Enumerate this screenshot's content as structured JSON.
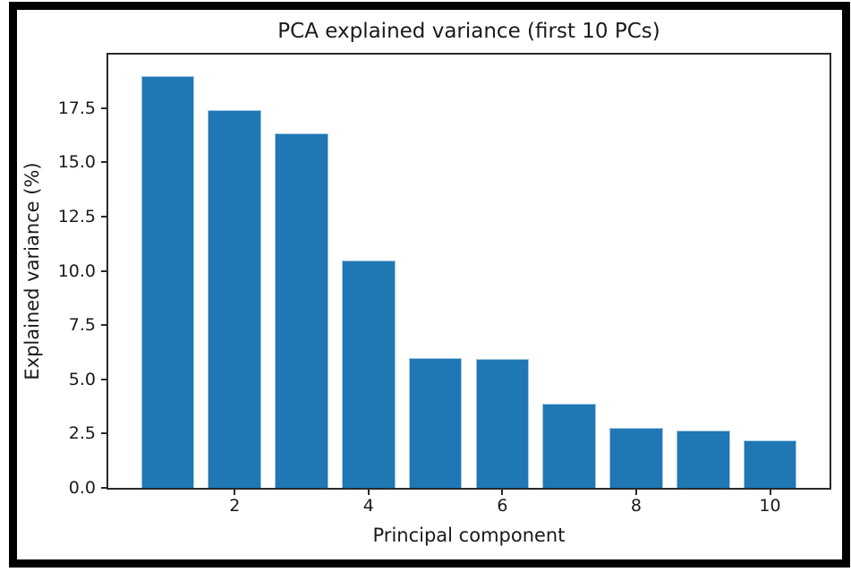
{
  "figure": {
    "frame_color": "#000000",
    "background_color": "#ffffff",
    "spine_color": "#2a2a2a",
    "text_color": "#1a1a1a"
  },
  "chart_data": {
    "type": "bar",
    "title": "PCA explained variance (first 10 PCs)",
    "xlabel": "Principal component",
    "ylabel": "Explained variance (%)",
    "categories": [
      1,
      2,
      3,
      4,
      5,
      6,
      7,
      8,
      9,
      10
    ],
    "values": [
      18.97,
      17.41,
      16.35,
      10.48,
      5.98,
      5.95,
      3.86,
      2.78,
      2.65,
      2.2
    ],
    "bar_color": "#1f77b4",
    "bar_edge_color": "#9ec7e0",
    "bar_width": 0.8,
    "xlim": [
      0.11,
      10.89
    ],
    "ylim": [
      0,
      19.96
    ],
    "yticks": [
      0.0,
      2.5,
      5.0,
      7.5,
      10.0,
      12.5,
      15.0,
      17.5
    ],
    "ytick_labels": [
      "0.0",
      "2.5",
      "5.0",
      "7.5",
      "10.0",
      "12.5",
      "15.0",
      "17.5"
    ],
    "xticks": [
      2,
      4,
      6,
      8,
      10
    ],
    "xtick_labels": [
      "2",
      "4",
      "6",
      "8",
      "10"
    ],
    "grid": false,
    "legend": null
  }
}
